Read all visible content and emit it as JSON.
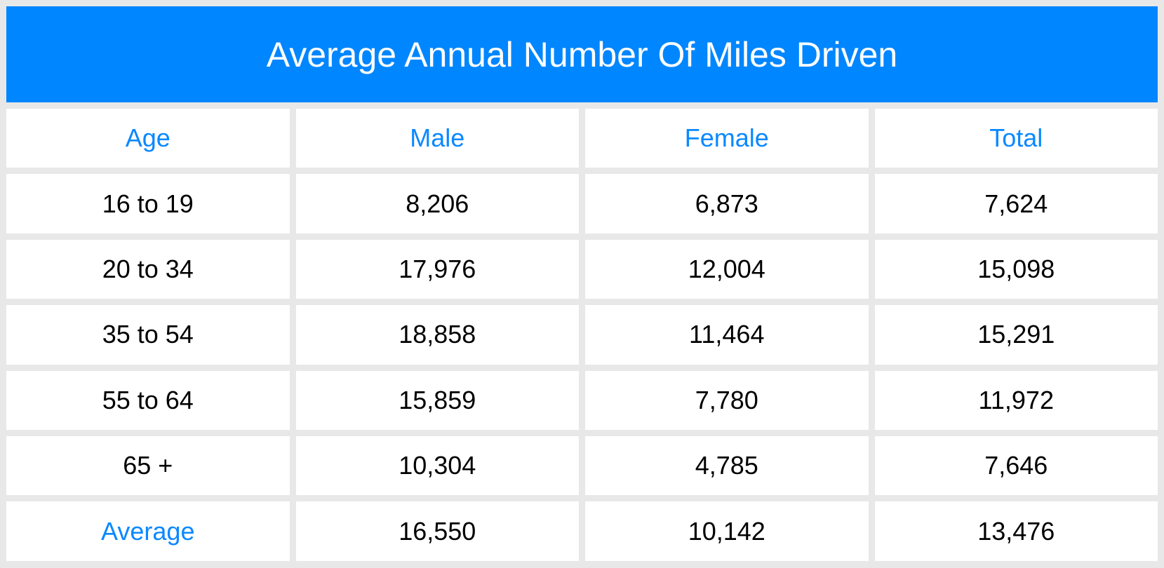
{
  "title": "Average Annual Number Of Miles Driven",
  "headers": [
    "Age",
    "Male",
    "Female",
    "Total"
  ],
  "rows": [
    [
      "16 to 19",
      "8,206",
      "6,873",
      "7,624"
    ],
    [
      "20 to 34",
      "17,976",
      "12,004",
      "15,098"
    ],
    [
      "35 to 54",
      "18,858",
      "11,464",
      "15,291"
    ],
    [
      "55 to 64",
      "15,859",
      "7,780",
      "11,972"
    ],
    [
      "65 +",
      "10,304",
      "4,785",
      "7,646"
    ],
    [
      "Average",
      "16,550",
      "10,142",
      "13,476"
    ]
  ],
  "colors": {
    "accent": "#0086ff",
    "background": "#e8e8e8"
  }
}
